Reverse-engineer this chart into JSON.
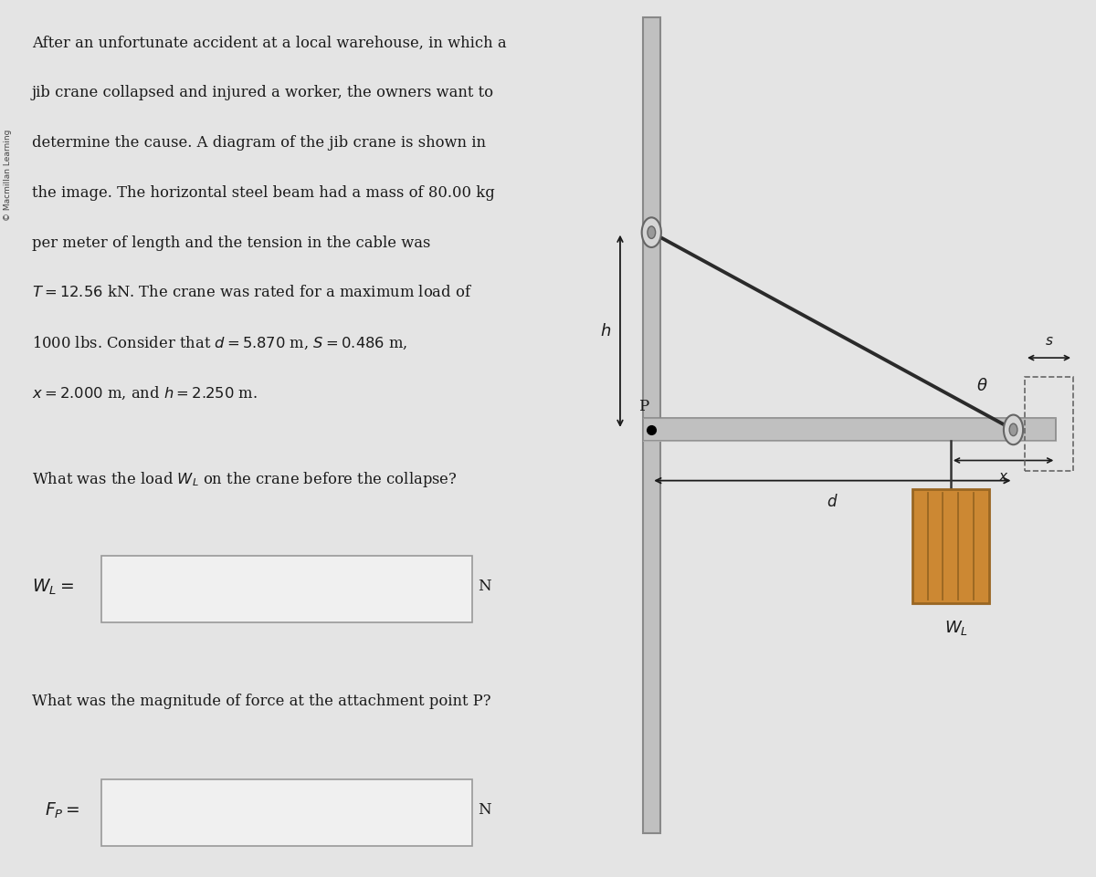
{
  "bg_color": "#e4e4e4",
  "text_lines": [
    "After an unfortunate accident at a local warehouse, in which a",
    "jib crane collapsed and injured a worker, the owners want to",
    "determine the cause. A diagram of the jib crane is shown in",
    "the image. The horizontal steel beam had a mass of 80.00 kg",
    "per meter of length and the tension in the cable was",
    "$T = 12.56$ kN. The crane was rated for a maximum load of",
    "1000 lbs. Consider that $d = 5.870$ m, $S = 0.486$ m,",
    "$x = 2.000$ m, and $h = 2.250$ m."
  ],
  "question1": "What was the load $W_L$ on the crane before the collapse?",
  "question2": "What was the magnitude of force at the attachment point P?",
  "label_WL": "$W_L =$",
  "label_Fp": "$F_P =$",
  "unit_N": "N",
  "sidebar_text": "© Macmillan Learning",
  "beam_color_face": "#c0c0c0",
  "beam_color_edge": "#888888",
  "cable_color": "#2a2a2a",
  "box_color": "#cc8833",
  "box_dark": "#996622",
  "vert_bar_face": "#c0c0c0",
  "vert_bar_edge": "#888888",
  "input_box_color": "#f0f0f0",
  "input_box_edge": "#999999",
  "arrow_color": "#1a1a1a",
  "text_color": "#1a1a1a"
}
